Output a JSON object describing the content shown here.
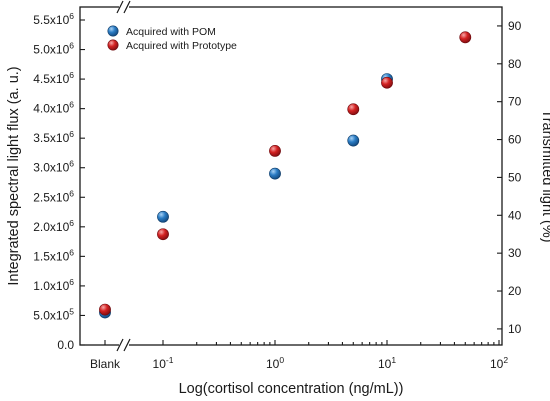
{
  "chart_data": {
    "type": "scatter",
    "xlabel": "Log(cortisol concentration (ng/mL))",
    "ylabel_left": "Integrated spectral light flux (a. u.)",
    "ylabel_right": "Transmitted light (%)",
    "x_scale": "log with axis break",
    "x_category_label": "Blank",
    "x_ticks": [
      {
        "base": "10",
        "exp": "-1",
        "value": 0.1
      },
      {
        "base": "10",
        "exp": "0",
        "value": 1
      },
      {
        "base": "10",
        "exp": "1",
        "value": 10
      },
      {
        "base": "10",
        "exp": "2",
        "value": 100
      }
    ],
    "y_left_ticks": [
      {
        "text": "0.0",
        "mant": "",
        "exp": "",
        "value": 0
      },
      {
        "text": "",
        "mant": "5.0x10",
        "exp": "5",
        "value": 500000
      },
      {
        "text": "",
        "mant": "1.0x10",
        "exp": "6",
        "value": 1000000
      },
      {
        "text": "",
        "mant": "1.5x10",
        "exp": "6",
        "value": 1500000
      },
      {
        "text": "",
        "mant": "2.0x10",
        "exp": "6",
        "value": 2000000
      },
      {
        "text": "",
        "mant": "2.5x10",
        "exp": "6",
        "value": 2500000
      },
      {
        "text": "",
        "mant": "3.0x10",
        "exp": "6",
        "value": 3000000
      },
      {
        "text": "",
        "mant": "3.5x10",
        "exp": "6",
        "value": 3500000
      },
      {
        "text": "",
        "mant": "4.0x10",
        "exp": "6",
        "value": 4000000
      },
      {
        "text": "",
        "mant": "4.5x10",
        "exp": "6",
        "value": 4500000
      },
      {
        "text": "",
        "mant": "5.0x10",
        "exp": "6",
        "value": 5000000
      },
      {
        "text": "",
        "mant": "5.5x10",
        "exp": "6",
        "value": 5500000
      }
    ],
    "y_right_ticks": [
      "10",
      "20",
      "30",
      "40",
      "50",
      "60",
      "70",
      "80",
      "90"
    ],
    "ylim_left": [
      0,
      5720000
    ],
    "ylim_right": [
      5.75,
      95
    ],
    "legend_position": "top-left",
    "series": [
      {
        "name": "Acquired with POM",
        "axis": "left",
        "color": "#1f6cb0",
        "points": [
          {
            "x": "Blank",
            "y": 550000
          },
          {
            "x": 0.1,
            "y": 2170000
          },
          {
            "x": 1,
            "y": 2900000
          },
          {
            "x": 5,
            "y": 3460000
          },
          {
            "x": 10,
            "y": 4500000
          }
        ]
      },
      {
        "name": "Acquired with Prototype",
        "axis": "right",
        "color": "#c8141c",
        "points": [
          {
            "x": "Blank",
            "y": 15.1
          },
          {
            "x": 0.1,
            "y": 35
          },
          {
            "x": 1,
            "y": 57
          },
          {
            "x": 5,
            "y": 68
          },
          {
            "x": 10,
            "y": 75
          },
          {
            "x": 50,
            "y": 87
          }
        ]
      }
    ]
  }
}
